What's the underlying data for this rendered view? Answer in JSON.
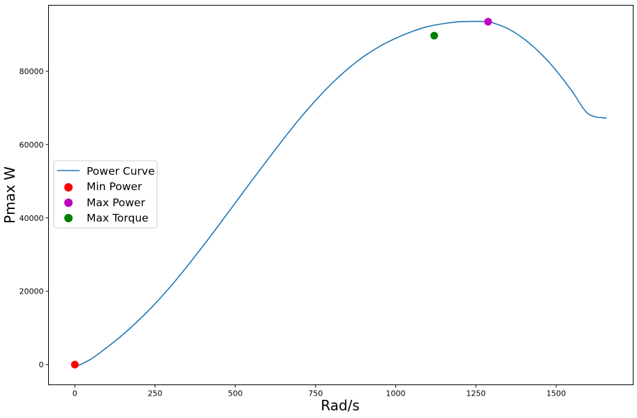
{
  "chart_data": {
    "type": "line",
    "title": "",
    "xlabel": "Rad/s",
    "ylabel": "Pmax W",
    "xlim": [
      -82,
      1740
    ],
    "ylim": [
      -5500,
      98000
    ],
    "xticks": [
      0,
      250,
      500,
      750,
      1000,
      1250,
      1500
    ],
    "yticks": [
      0,
      20000,
      40000,
      60000,
      80000
    ],
    "grid": false,
    "legend_position": "center-left",
    "series": [
      {
        "name": "Power Curve",
        "kind": "line",
        "color": "#1f77b4",
        "x": [
          0,
          50,
          100,
          150,
          200,
          250,
          300,
          350,
          400,
          450,
          500,
          550,
          600,
          650,
          700,
          750,
          800,
          850,
          900,
          950,
          1000,
          1050,
          1100,
          1150,
          1200,
          1250,
          1288,
          1300,
          1350,
          1400,
          1450,
          1500,
          1550,
          1600,
          1657
        ],
        "y": [
          -700,
          1500,
          4700,
          8200,
          12200,
          16600,
          21500,
          26800,
          32400,
          38200,
          44100,
          50000,
          55800,
          61500,
          67000,
          72000,
          76600,
          80600,
          84000,
          86800,
          89000,
          90800,
          92200,
          93000,
          93500,
          93600,
          93500,
          93300,
          91600,
          88800,
          85000,
          80200,
          74500,
          68400,
          67200
        ]
      }
    ],
    "points": [
      {
        "name": "Min Power",
        "x": 0,
        "y": 0,
        "color": "#ff0000"
      },
      {
        "name": "Max Power",
        "x": 1288,
        "y": 93500,
        "color": "#bf00bf"
      },
      {
        "name": "Max Torque",
        "x": 1120,
        "y": 89700,
        "color": "#008000"
      }
    ]
  }
}
